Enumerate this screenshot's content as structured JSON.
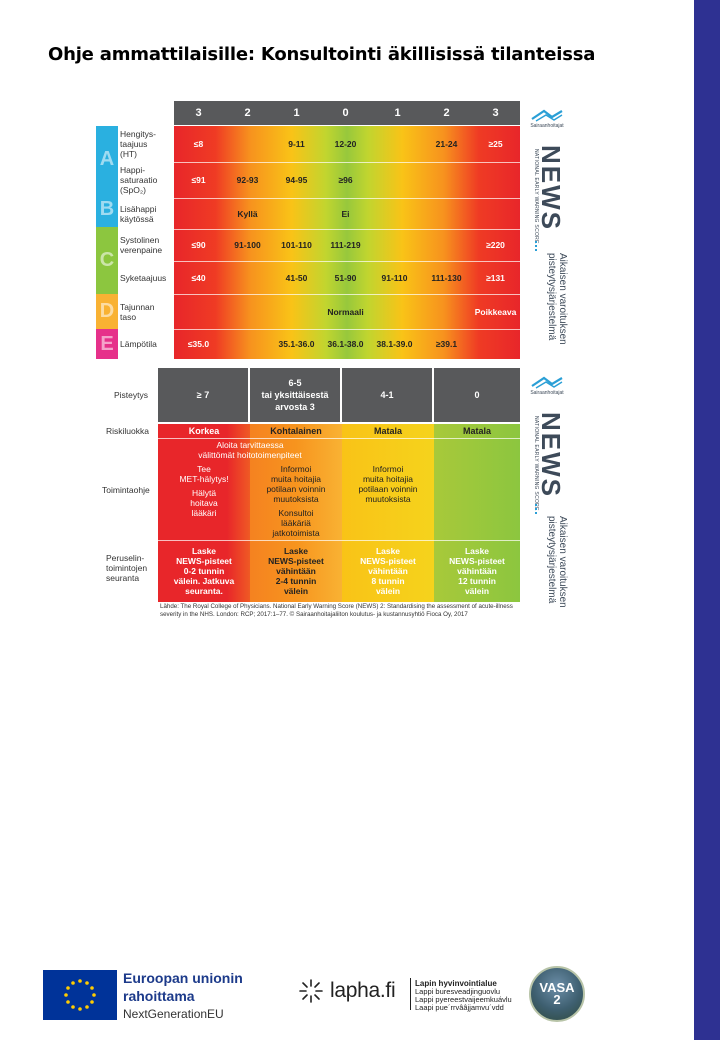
{
  "title": "Ohje ammattilaisille: Konsultointi äkillisissä tilanteissa",
  "news_table": {
    "score_header": [
      "3",
      "2",
      "1",
      "0",
      "1",
      "2",
      "3"
    ],
    "letters": [
      "A",
      "B",
      "C",
      "D",
      "E"
    ],
    "rows": [
      {
        "label": "Hengitys-\ntaajuus\n(HT)",
        "cells": [
          "≤8",
          "",
          "9-11",
          "12-20",
          "",
          "21-24",
          "≥25"
        ]
      },
      {
        "label": "Happi-\nsaturaatio\n(SpO₂)",
        "cells": [
          "≤91",
          "92-93",
          "94-95",
          "≥96",
          "",
          "",
          ""
        ]
      },
      {
        "label": "Lisähappi\nkäytössä",
        "cells": [
          "",
          "Kyllä",
          "",
          "Ei",
          "",
          "",
          ""
        ]
      },
      {
        "label": "Systolinen\nverenpaine",
        "cells": [
          "≤90",
          "91-100",
          "101-110",
          "111-219",
          "",
          "",
          "≥220"
        ]
      },
      {
        "label": "Syketaajuus",
        "cells": [
          "≤40",
          "",
          "41-50",
          "51-90",
          "91-110",
          "111-130",
          "≥131"
        ]
      },
      {
        "label": "Tajunnan\ntaso",
        "cells": [
          "",
          "",
          "",
          "Normaali",
          "",
          "",
          "Poikkeava"
        ]
      },
      {
        "label": "Lämpötila",
        "cells": [
          "≤35.0",
          "",
          "35.1-36.0",
          "36.1-38.0",
          "38.1-39.0",
          "≥39.1",
          ""
        ]
      }
    ]
  },
  "response_table": {
    "row_labels": {
      "scoring": "Pisteytys",
      "risk": "Riskiluokka",
      "action": "Toimintaohje",
      "monitoring": "Peruselin-\ntoimintojen\nseuranta"
    },
    "score_headers": [
      "≥ 7",
      "6-5\ntai yksittäisestä\narvosta 3",
      "4-1",
      "0"
    ],
    "risk": [
      "Korkea",
      "Kohtalainen",
      "Matala",
      "Matala"
    ],
    "action_banner": "Aloita tarvittaessa\nvälittömät hoitotoimenpiteet",
    "action_high_1": "Tee\nMET-hälytys!",
    "action_high_2": "Hälytä\nhoitava\nlääkäri",
    "action_mid_1": "Informoi\nmuita hoitajia\npotilaan voinnin\nmuutoksista",
    "action_mid_2": "Konsultoi\nlääkäriä\njatkotoimista",
    "action_low": "Informoi\nmuita hoitajia\npotilaan voinnin\nmuutoksista",
    "monitoring": [
      "Laske\nNEWS-pisteet\n0-2 tunnin\nvälein. Jatkuva\nseuranta.",
      "Laske\nNEWS-pisteet\nvähintään\n2-4 tunnin\nvälein",
      "Laske\nNEWS-pisteet\nvähintään\n8 tunnin\nvälein",
      "Laske\nNEWS-pisteet\nvähintään\n12 tunnin\nvälein"
    ]
  },
  "source": "Lähde: The Royal College of Physicians. National Early Warning Score (NEWS) 2: Standardising the assessment of acute-illness severity in the NHS. London: RCP; 2017:1–77. © Sairaanhoitajaliiton koulutus- ja kustannusyhtiö Fioca Oy, 2017",
  "side_logo": {
    "org": "Sairaanhoitajat",
    "news": "NEWS",
    "news_sub": "NATIONAL EARLY WARNING SCORE",
    "fi_text": "Aikaisen varoituksen\npisteytysjärjestelmä"
  },
  "footer": {
    "eu_line1": "Euroopan unionin",
    "eu_line2": "rahoittama",
    "eu_line3": "NextGenerationEU",
    "lapha_name": "lapha.fi",
    "lapha_l1": "Lapin hyvinvointialue",
    "lapha_l2": "Lappi buresveadjinguovlu",
    "lapha_l3": "Lappi pyereestvaijeemkuávlu",
    "lapha_l4": "Laapi pue´rrvââjjamvu´vdd",
    "vasa_l1": "VASA",
    "vasa_l2": "2"
  },
  "colors": {
    "accent_bar": "#2e3192",
    "header_gray": "#58595b",
    "red": "#e8262a",
    "orange": "#f7921e",
    "yellow": "#f9c317",
    "green": "#97c83c",
    "eu_blue": "#003399"
  }
}
